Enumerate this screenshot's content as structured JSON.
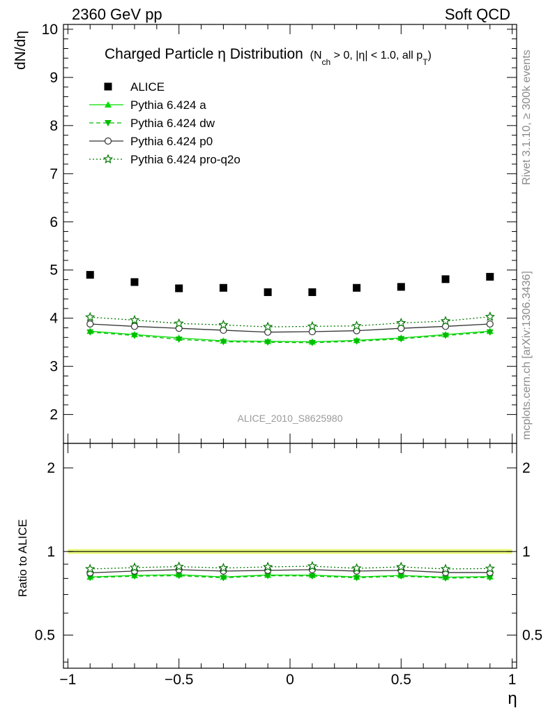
{
  "header": {
    "left": "2360 GeV pp",
    "right": "Soft QCD"
  },
  "side_text": {
    "rivet": "Rivet 3.1.10, ≥ 300k events",
    "mcplots": "mcplots.cern.ch [arXiv:1306.3436]"
  },
  "watermark": "ALICE_2010_S8625980",
  "chart_data": [
    {
      "type": "scatter",
      "panel": "main",
      "title": "Charged Particle η Distribution",
      "subtitle_parts": [
        "(N",
        "ch",
        " > 0, |η| < 1.0, all p",
        "T",
        ")"
      ],
      "ylabel": "dN/dη",
      "xlabel": "",
      "ylim": [
        1.4,
        10.1
      ],
      "xlim": [
        -1.02,
        1.02
      ],
      "grid": false,
      "legend_placement": "top-left",
      "y_ticks": [
        "2",
        "3",
        "4",
        "5",
        "6",
        "7",
        "8",
        "9",
        "10"
      ],
      "x": [
        -0.9,
        -0.7,
        -0.5,
        -0.3,
        -0.1,
        0.1,
        0.3,
        0.5,
        0.7,
        0.9
      ],
      "series": [
        {
          "name": "ALICE",
          "marker": "square",
          "color": "#000000",
          "line": "none",
          "values": [
            4.9,
            4.75,
            4.62,
            4.63,
            4.54,
            4.54,
            4.63,
            4.65,
            4.81,
            4.86
          ]
        },
        {
          "name": "Pythia 6.424 a",
          "marker": "triangle-up",
          "color": "#00dd00",
          "line": "solid",
          "values": [
            3.73,
            3.66,
            3.59,
            3.53,
            3.52,
            3.51,
            3.54,
            3.59,
            3.66,
            3.73
          ]
        },
        {
          "name": "Pythia 6.424 dw",
          "marker": "triangle-down",
          "color": "#00bb00",
          "line": "dashed",
          "values": [
            3.71,
            3.64,
            3.56,
            3.51,
            3.5,
            3.49,
            3.52,
            3.57,
            3.64,
            3.71
          ]
        },
        {
          "name": "Pythia 6.424 p0",
          "marker": "circle-open",
          "color": "#333333",
          "line": "solid",
          "values": [
            3.88,
            3.83,
            3.79,
            3.75,
            3.71,
            3.72,
            3.74,
            3.79,
            3.83,
            3.88
          ]
        },
        {
          "name": "Pythia 6.424 pro-q2o",
          "marker": "star-open",
          "color": "#007700",
          "line": "dotted",
          "values": [
            4.02,
            3.96,
            3.89,
            3.86,
            3.82,
            3.83,
            3.84,
            3.9,
            3.94,
            4.03
          ]
        }
      ]
    },
    {
      "type": "scatter",
      "panel": "ratio",
      "ylabel": "Ratio to ALICE",
      "xlabel": "η",
      "ylim": [
        0.38,
        2.45
      ],
      "xlim": [
        -1.02,
        1.02
      ],
      "y_ticks": [
        "0.5",
        "1",
        "2"
      ],
      "x_ticks": [
        "−1",
        "−0.5",
        "0",
        "0.5",
        "1"
      ],
      "band": {
        "center": 1.0,
        "half_width": 0.02,
        "color": "#e8f77a"
      },
      "x": [
        -0.9,
        -0.7,
        -0.5,
        -0.3,
        -0.1,
        0.1,
        0.3,
        0.5,
        0.7,
        0.9
      ],
      "series": [
        {
          "name": "Pythia 6.424 a",
          "values": [
            0.81,
            0.82,
            0.825,
            0.81,
            0.823,
            0.822,
            0.81,
            0.82,
            0.808,
            0.812
          ]
        },
        {
          "name": "Pythia 6.424 dw",
          "values": [
            0.805,
            0.815,
            0.818,
            0.804,
            0.818,
            0.816,
            0.804,
            0.815,
            0.802,
            0.806
          ]
        },
        {
          "name": "Pythia 6.424 p0",
          "values": [
            0.838,
            0.85,
            0.86,
            0.85,
            0.855,
            0.86,
            0.85,
            0.855,
            0.84,
            0.84
          ]
        },
        {
          "name": "Pythia 6.424 pro-q2o",
          "values": [
            0.865,
            0.875,
            0.882,
            0.872,
            0.88,
            0.885,
            0.87,
            0.88,
            0.865,
            0.868
          ]
        }
      ]
    }
  ]
}
